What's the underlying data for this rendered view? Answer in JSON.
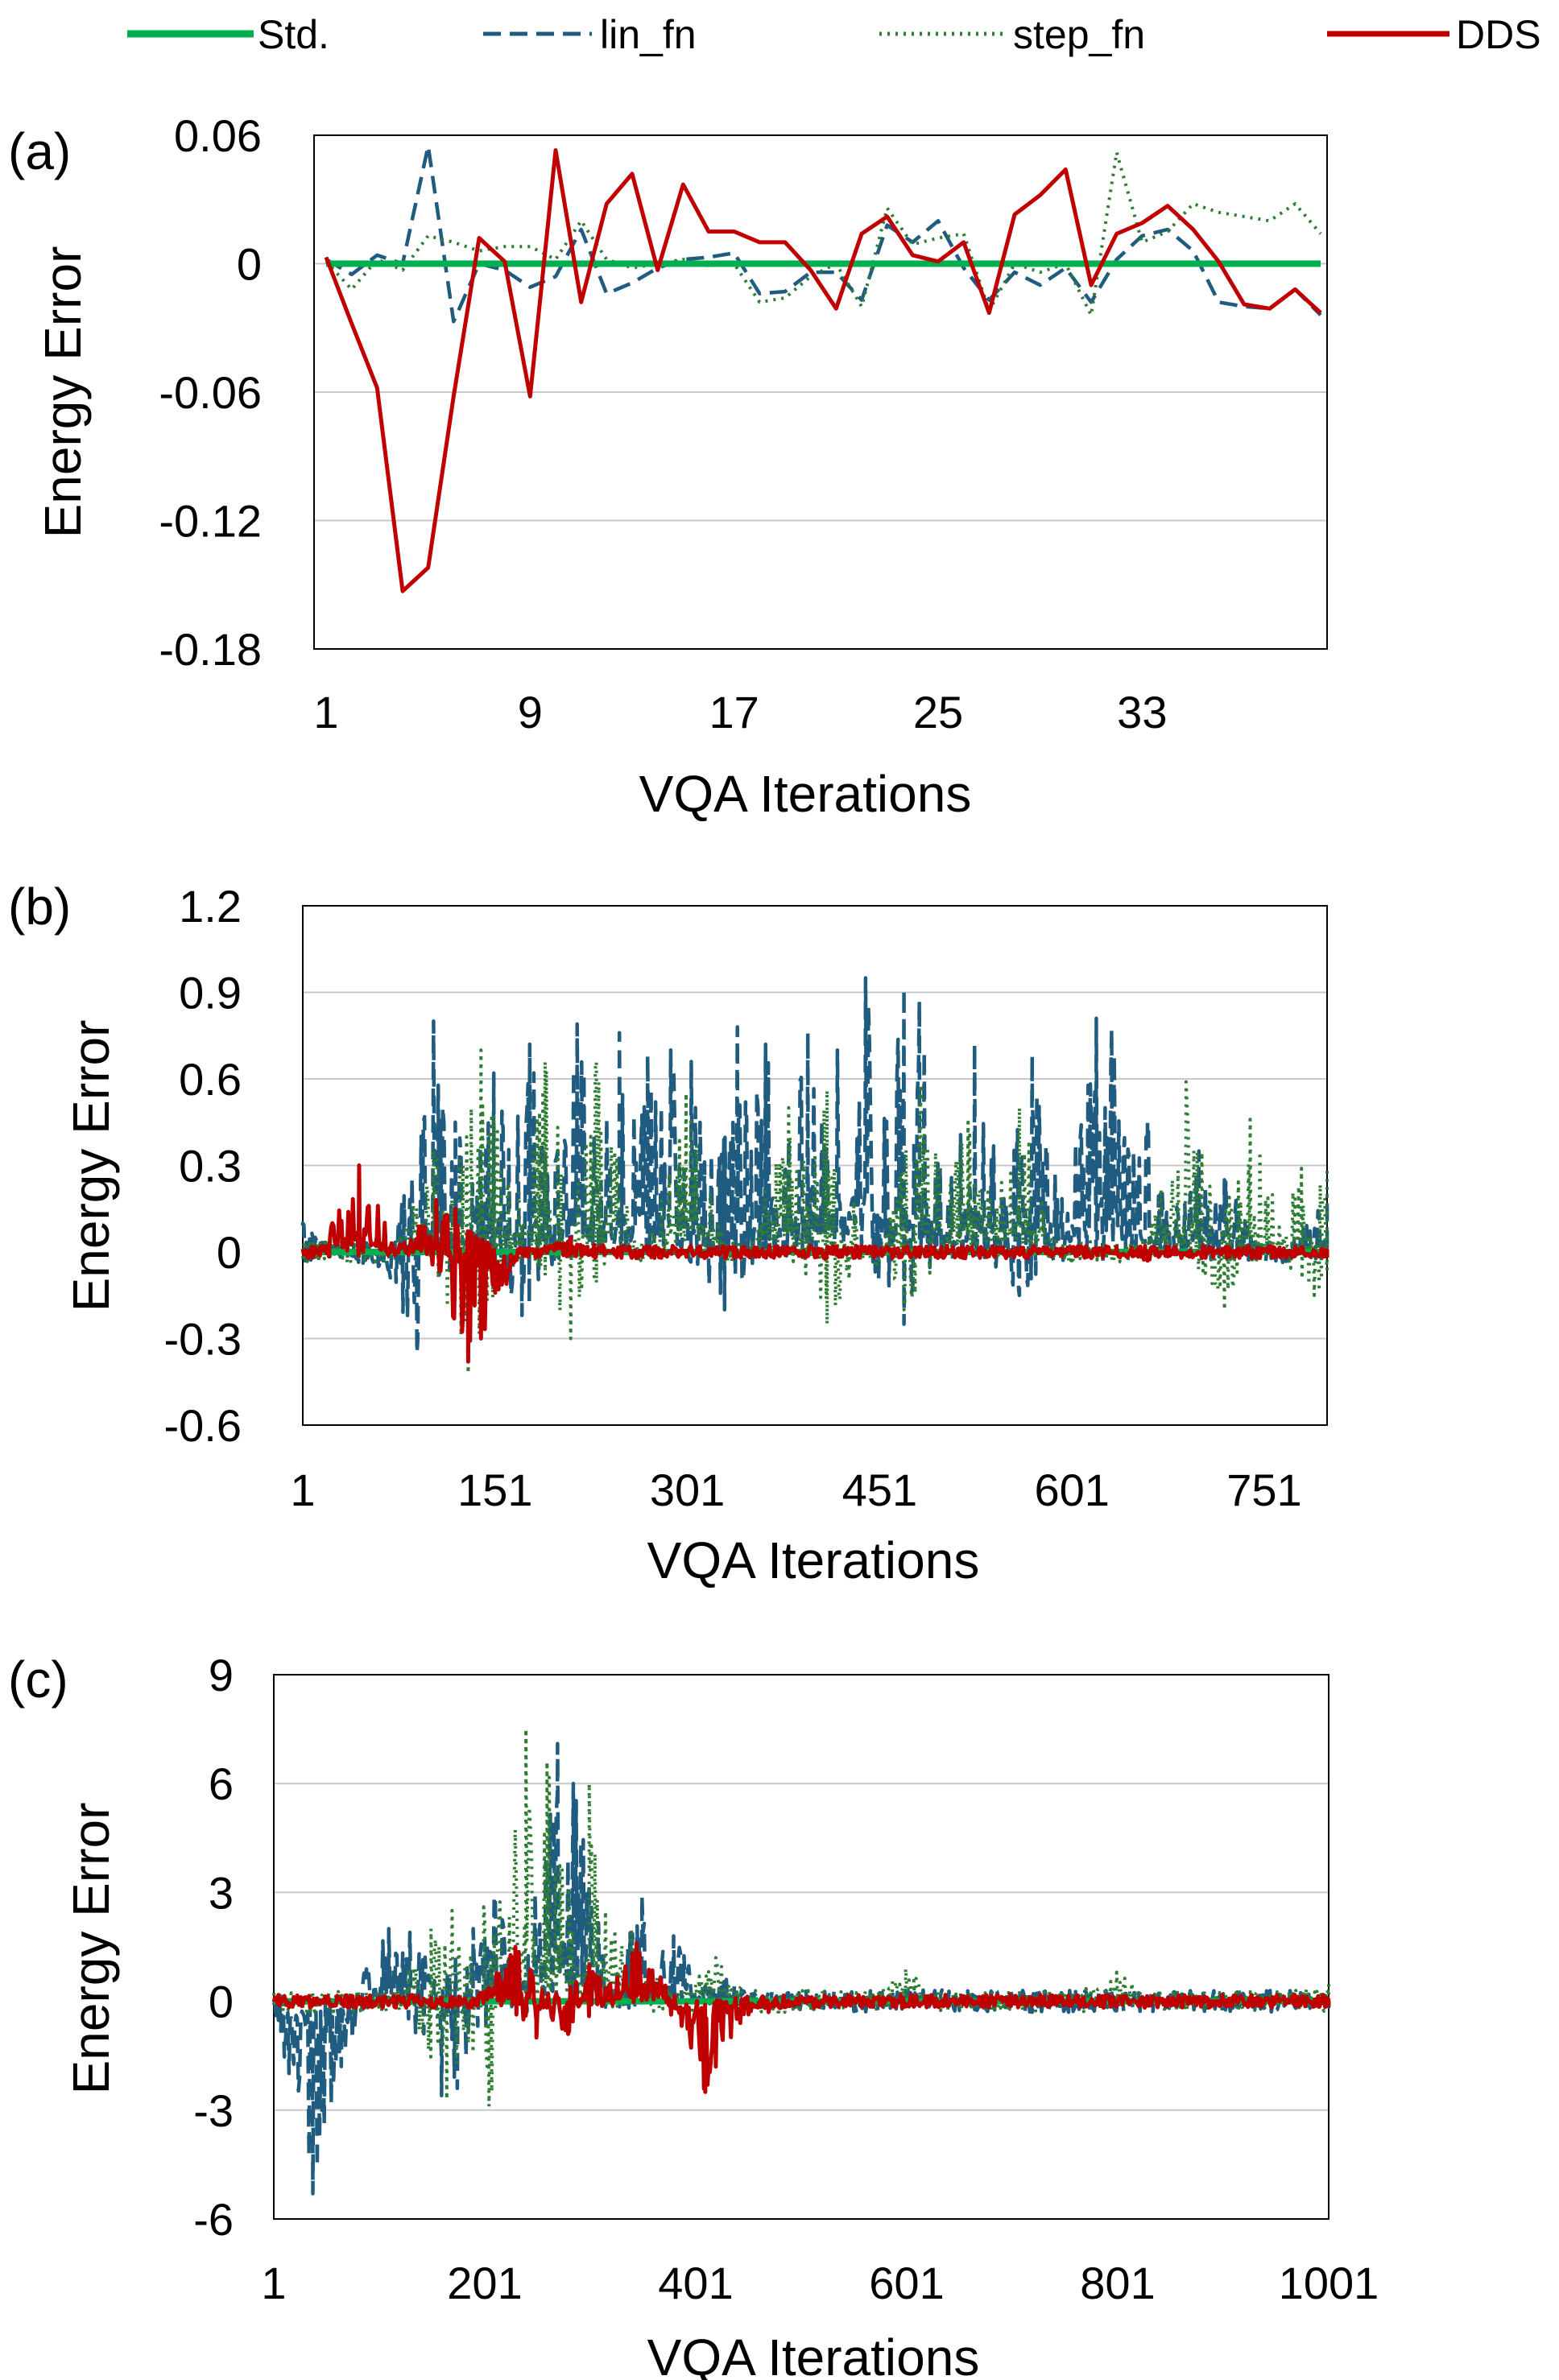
{
  "colors": {
    "std": "#00b050",
    "lin_fn": "#1f5c80",
    "step_fn": "#2e7d32",
    "dds": "#c00000",
    "grid": "#c8c8c8"
  },
  "legend": {
    "placement": "top",
    "items": [
      {
        "label": "Std.",
        "style": "solid",
        "color": "#00b050"
      },
      {
        "label": "lin_fn",
        "style": "dashed",
        "color": "#1f5c80"
      },
      {
        "label": "step_fn",
        "style": "dotted",
        "color": "#2e7d32"
      },
      {
        "label": "DDS",
        "style": "solid",
        "color": "#c00000"
      }
    ]
  },
  "chart_data": [
    {
      "panel": "(a)",
      "type": "line",
      "xlabel": "VQA Iterations",
      "ylabel": "Energy Error",
      "xlim": [
        1,
        40
      ],
      "ylim": [
        -0.18,
        0.06
      ],
      "yticks": [
        "-0.18",
        "-0.12",
        "-0.06",
        "0",
        "0.06"
      ],
      "xticks": [
        "1",
        "9",
        "17",
        "25",
        "33"
      ],
      "grid": true,
      "series": [
        {
          "name": "Std.",
          "style": "solid",
          "x": [
            1,
            40
          ],
          "y": [
            0,
            0
          ]
        },
        {
          "name": "lin_fn",
          "style": "dashed",
          "x": [
            1,
            2,
            3,
            4,
            5,
            6,
            7,
            8,
            9,
            10,
            11,
            12,
            13,
            14,
            15,
            16,
            17,
            18,
            19,
            20,
            21,
            22,
            23,
            24,
            25,
            26,
            27,
            28,
            29,
            30,
            31,
            32,
            33,
            34,
            35,
            36,
            37,
            38,
            39,
            40
          ],
          "y": [
            0.002,
            -0.005,
            0.004,
            0,
            0.055,
            -0.027,
            0,
            -0.003,
            -0.011,
            -0.006,
            0.016,
            -0.014,
            -0.009,
            -0.002,
            0.002,
            0.003,
            0.005,
            -0.014,
            -0.013,
            -0.004,
            -0.004,
            -0.017,
            0.018,
            0.01,
            0.02,
            -0.002,
            -0.017,
            -0.004,
            -0.01,
            -0.002,
            -0.018,
            0.002,
            0.013,
            0.016,
            0.006,
            -0.018,
            -0.02,
            -0.021,
            -0.012,
            -0.024
          ]
        },
        {
          "name": "step_fn",
          "style": "dotted",
          "x": [
            1,
            2,
            3,
            4,
            5,
            6,
            7,
            8,
            9,
            10,
            11,
            12,
            13,
            14,
            15,
            16,
            17,
            18,
            19,
            20,
            21,
            22,
            23,
            24,
            25,
            26,
            27,
            28,
            29,
            30,
            31,
            32,
            33,
            34,
            35,
            36,
            37,
            38,
            39,
            40
          ],
          "y": [
            0.001,
            -0.012,
            0.002,
            -0.003,
            0.013,
            0.01,
            0.006,
            0.008,
            0.008,
            0.002,
            0.02,
            0.002,
            -0.002,
            0,
            0.002,
            -0.001,
            0,
            -0.018,
            -0.016,
            -0.006,
            0,
            -0.02,
            0.026,
            0.009,
            0.012,
            0.014,
            -0.022,
            0,
            -0.004,
            0,
            -0.024,
            0.052,
            0.01,
            0.015,
            0.028,
            0.024,
            0.022,
            0.02,
            0.028,
            0.014
          ]
        },
        {
          "name": "DDS",
          "style": "solid",
          "x": [
            1,
            2,
            3,
            4,
            5,
            6,
            7,
            8,
            9,
            10,
            11,
            12,
            13,
            14,
            15,
            16,
            17,
            18,
            19,
            20,
            21,
            22,
            23,
            24,
            25,
            26,
            27,
            28,
            29,
            30,
            31,
            32,
            33,
            34,
            35,
            36,
            37,
            38,
            39,
            40
          ],
          "y": [
            0.003,
            -0.028,
            -0.058,
            -0.153,
            -0.142,
            -0.062,
            0.012,
            0.001,
            -0.062,
            0.053,
            -0.018,
            0.028,
            0.042,
            -0.003,
            0.037,
            0.015,
            0.015,
            0.01,
            0.01,
            -0.003,
            -0.021,
            0.014,
            0.022,
            0.004,
            0.001,
            0.01,
            -0.023,
            0.023,
            0.032,
            0.044,
            -0.01,
            0.014,
            0.019,
            0.027,
            0.016,
            0.001,
            -0.019,
            -0.021,
            -0.012,
            -0.023
          ]
        }
      ]
    },
    {
      "panel": "(b)",
      "type": "line",
      "xlabel": "VQA Iterations",
      "ylabel": "Energy Error",
      "xlim": [
        1,
        800
      ],
      "ylim": [
        -0.6,
        1.2
      ],
      "yticks": [
        "-0.6",
        "-0.3",
        "0",
        "0.3",
        "0.6",
        "0.9",
        "1.2"
      ],
      "xticks": [
        "1",
        "151",
        "301",
        "451",
        "601",
        "751"
      ],
      "grid": true,
      "series": [
        {
          "name": "Std.",
          "style": "solid",
          "x": [
            1,
            800
          ],
          "y": [
            0,
            0
          ]
        },
        {
          "name": "lin_fn",
          "style": "dashed",
          "x_range": [
            1,
            800
          ],
          "shape": "noisy",
          "peaks": [
            {
              "x": 1,
              "y": 0.1
            },
            {
              "x": 60,
              "y": -0.05
            },
            {
              "x": 90,
              "y": -0.35
            },
            {
              "x": 103,
              "y": 0.8
            },
            {
              "x": 120,
              "y": 0.45
            },
            {
              "x": 150,
              "y": 0.62
            },
            {
              "x": 178,
              "y": 0.72
            },
            {
              "x": 215,
              "y": 0.79
            },
            {
              "x": 248,
              "y": 0.76
            },
            {
              "x": 270,
              "y": 0.68
            },
            {
              "x": 288,
              "y": 0.7
            },
            {
              "x": 304,
              "y": 0.66
            },
            {
              "x": 340,
              "y": 0.78
            },
            {
              "x": 362,
              "y": 0.72
            },
            {
              "x": 395,
              "y": 0.76
            },
            {
              "x": 418,
              "y": 0.7
            },
            {
              "x": 440,
              "y": 0.95
            },
            {
              "x": 470,
              "y": 0.91
            },
            {
              "x": 482,
              "y": 0.87
            },
            {
              "x": 525,
              "y": 0.72
            },
            {
              "x": 570,
              "y": 0.68
            },
            {
              "x": 620,
              "y": 0.81
            },
            {
              "x": 632,
              "y": 0.77
            },
            {
              "x": 660,
              "y": 0.45
            },
            {
              "x": 700,
              "y": 0.35
            },
            {
              "x": 720,
              "y": 0.25
            },
            {
              "x": 800,
              "y": 0.2
            },
            {
              "x": 172,
              "y": -0.22
            },
            {
              "x": 330,
              "y": -0.2
            },
            {
              "x": 470,
              "y": -0.25
            },
            {
              "x": 560,
              "y": -0.15
            }
          ]
        },
        {
          "name": "step_fn",
          "style": "dotted",
          "x_range": [
            1,
            800
          ],
          "shape": "noisy",
          "peaks": [
            {
              "x": 103,
              "y": 0.35
            },
            {
              "x": 126,
              "y": 0.3
            },
            {
              "x": 140,
              "y": 0.7
            },
            {
              "x": 190,
              "y": 0.66
            },
            {
              "x": 230,
              "y": 0.66
            },
            {
              "x": 300,
              "y": 0.55
            },
            {
              "x": 380,
              "y": 0.5
            },
            {
              "x": 410,
              "y": 0.56
            },
            {
              "x": 483,
              "y": 0.58
            },
            {
              "x": 520,
              "y": 0.45
            },
            {
              "x": 560,
              "y": 0.5
            },
            {
              "x": 690,
              "y": 0.59
            },
            {
              "x": 740,
              "y": 0.46
            },
            {
              "x": 780,
              "y": 0.29
            },
            {
              "x": 800,
              "y": 0.29
            },
            {
              "x": 130,
              "y": -0.42
            },
            {
              "x": 210,
              "y": -0.3
            },
            {
              "x": 410,
              "y": -0.25
            },
            {
              "x": 470,
              "y": -0.2
            },
            {
              "x": 720,
              "y": -0.2
            },
            {
              "x": 790,
              "y": -0.15
            }
          ]
        },
        {
          "name": "DDS",
          "style": "solid",
          "x_range": [
            1,
            800
          ],
          "shape": "noisy",
          "peaks": [
            {
              "x": 45,
              "y": 0.3
            },
            {
              "x": 105,
              "y": 0.18
            },
            {
              "x": 120,
              "y": 0.15
            },
            {
              "x": 130,
              "y": -0.38
            },
            {
              "x": 140,
              "y": -0.3
            },
            {
              "x": 210,
              "y": 0.05
            },
            {
              "x": 660,
              "y": -0.03
            },
            {
              "x": 800,
              "y": -0.02
            }
          ]
        }
      ]
    },
    {
      "panel": "(c)",
      "type": "line",
      "xlabel": "VQA Iterations",
      "ylabel": "Energy Error",
      "xlim": [
        1,
        1001
      ],
      "ylim": [
        -6,
        9
      ],
      "yticks": [
        "-6",
        "-3",
        "0",
        "3",
        "6",
        "9"
      ],
      "xticks": [
        "1",
        "201",
        "401",
        "601",
        "801",
        "1001"
      ],
      "grid": true,
      "series": [
        {
          "name": "Std.",
          "style": "solid",
          "x": [
            1,
            1001
          ],
          "y": [
            0,
            0
          ]
        },
        {
          "name": "lin_fn",
          "style": "dashed",
          "x_range": [
            1,
            1001
          ],
          "shape": "noisy",
          "peaks": [
            {
              "x": 38,
              "y": -5.3
            },
            {
              "x": 45,
              "y": -2.5
            },
            {
              "x": 65,
              "y": -1.8
            },
            {
              "x": 110,
              "y": 2.0
            },
            {
              "x": 130,
              "y": 1.9
            },
            {
              "x": 160,
              "y": -2.6
            },
            {
              "x": 175,
              "y": -2.4
            },
            {
              "x": 190,
              "y": 2.0
            },
            {
              "x": 210,
              "y": 2.9
            },
            {
              "x": 270,
              "y": 7.1
            },
            {
              "x": 285,
              "y": 6.0
            },
            {
              "x": 350,
              "y": 2.9
            },
            {
              "x": 380,
              "y": 1.8
            },
            {
              "x": 430,
              "y": 0.6
            },
            {
              "x": 600,
              "y": 0.3
            },
            {
              "x": 1001,
              "y": 0.1
            }
          ]
        },
        {
          "name": "step_fn",
          "style": "dotted",
          "x_range": [
            1,
            1001
          ],
          "shape": "noisy",
          "peaks": [
            {
              "x": 150,
              "y": 2.0
            },
            {
              "x": 170,
              "y": 2.5
            },
            {
              "x": 200,
              "y": 2.6
            },
            {
              "x": 240,
              "y": 7.5
            },
            {
              "x": 260,
              "y": 6.6
            },
            {
              "x": 300,
              "y": 6.0
            },
            {
              "x": 165,
              "y": -2.7
            },
            {
              "x": 205,
              "y": -2.9
            },
            {
              "x": 340,
              "y": 2.0
            },
            {
              "x": 420,
              "y": 1.2
            },
            {
              "x": 600,
              "y": 0.9
            },
            {
              "x": 800,
              "y": 0.8
            },
            {
              "x": 1001,
              "y": 0.5
            }
          ]
        },
        {
          "name": "DDS",
          "style": "solid",
          "x_range": [
            1,
            1001
          ],
          "shape": "noisy",
          "peaks": [
            {
              "x": 230,
              "y": 1.5
            },
            {
              "x": 250,
              "y": -1.0
            },
            {
              "x": 280,
              "y": -0.9
            },
            {
              "x": 300,
              "y": 1.0
            },
            {
              "x": 345,
              "y": 1.6
            },
            {
              "x": 410,
              "y": -2.5
            },
            {
              "x": 420,
              "y": -1.8
            },
            {
              "x": 470,
              "y": -0.3
            },
            {
              "x": 1001,
              "y": 0
            }
          ]
        }
      ]
    }
  ]
}
